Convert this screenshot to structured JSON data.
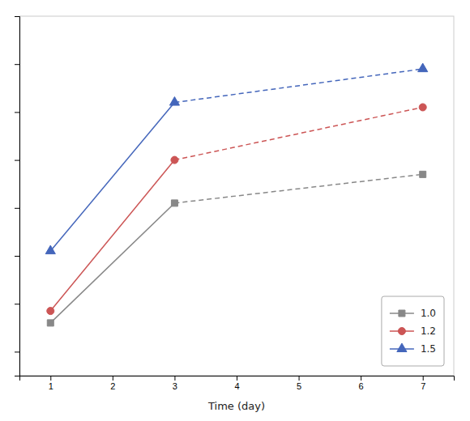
{
  "chart_data": {
    "type": "line",
    "x_label": "Time (day)",
    "x": [
      1,
      3,
      7
    ],
    "series": [
      {
        "name": "1.0",
        "color": "#888888",
        "marker": "square",
        "values": [
          2.6,
          5.1,
          5.7
        ]
      },
      {
        "name": "1.2",
        "color": "#cc5555",
        "marker": "circle",
        "values": [
          2.85,
          6.0,
          7.1
        ]
      },
      {
        "name": "1.5",
        "color": "#4466bb",
        "marker": "triangle",
        "values": [
          4.1,
          7.2,
          7.9
        ]
      }
    ],
    "xlim": [
      0.5,
      7.5
    ],
    "ylim": [
      1.5,
      9.0
    ],
    "xticks": [
      1,
      2,
      3,
      4,
      5,
      6,
      7
    ],
    "yticks": [
      2,
      3,
      4,
      5,
      6,
      7,
      8,
      9
    ],
    "tick_labels": "x",
    "grid": false,
    "legend": "lower right"
  }
}
